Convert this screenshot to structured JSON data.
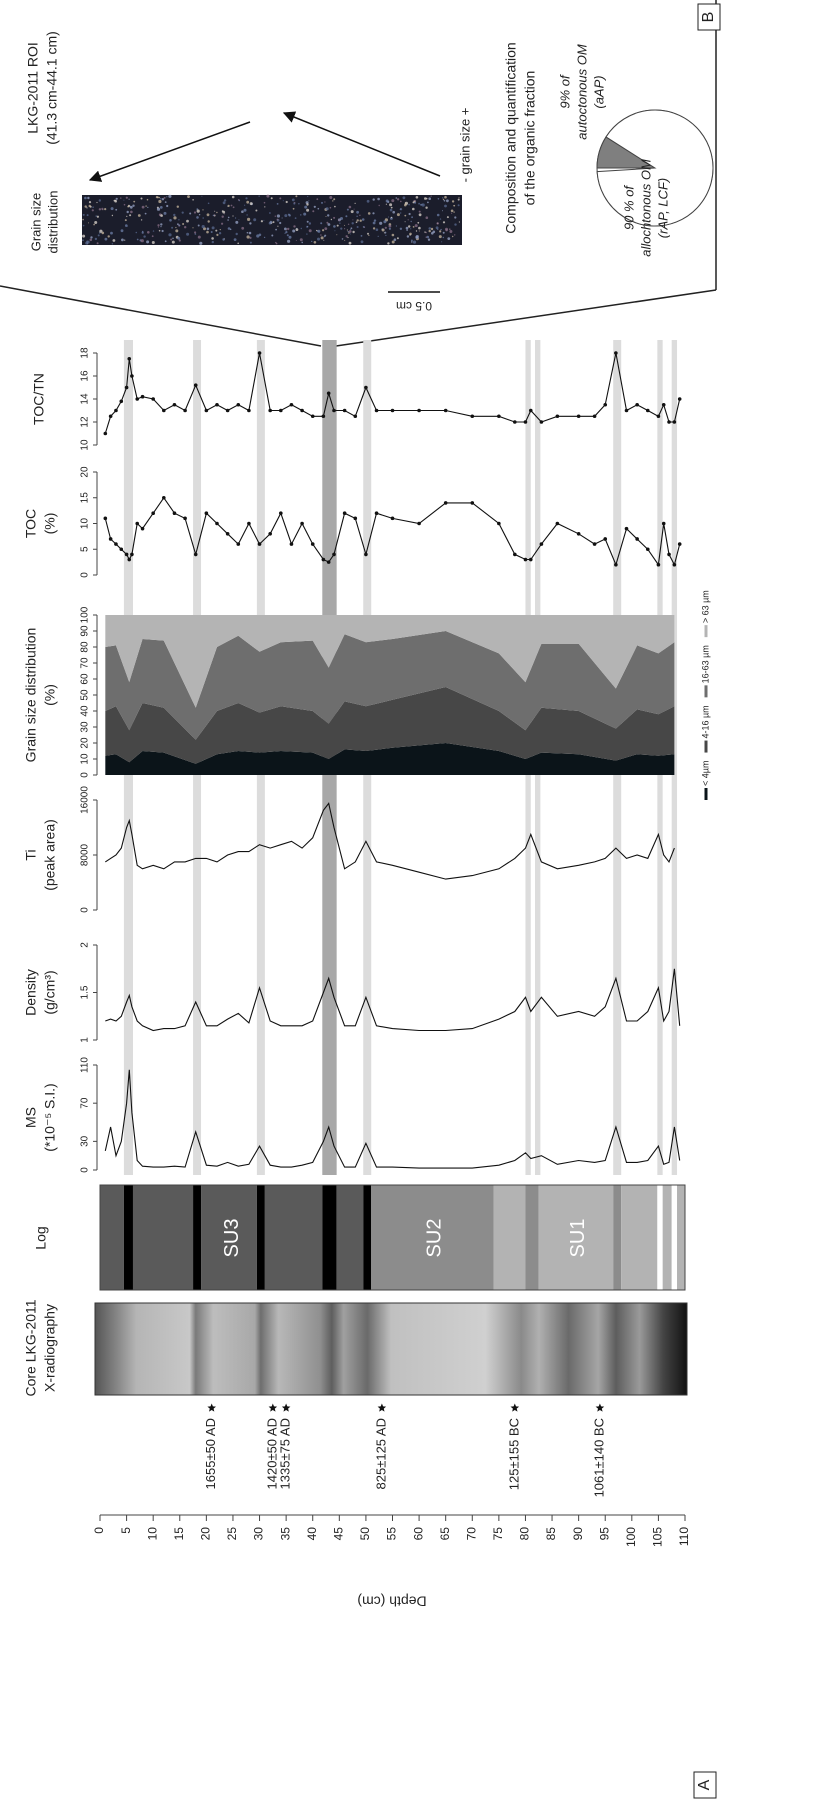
{
  "panel_a": {
    "label": "A",
    "depth_axis": {
      "title": "Depth (cm)",
      "lim": [
        0,
        110
      ],
      "ticks": [
        0,
        5,
        10,
        15,
        20,
        25,
        30,
        35,
        40,
        45,
        50,
        55,
        60,
        65,
        70,
        75,
        80,
        85,
        90,
        95,
        100,
        105,
        110
      ]
    },
    "xrad_title": [
      "Core LKG-2011",
      "X-radiography"
    ],
    "log_title": "Log",
    "dates": [
      {
        "label": "1655±50 AD",
        "depth": 21
      },
      {
        "label": "1420±50 AD",
        "depth": 32.5
      },
      {
        "label": "1335±75 AD",
        "depth": 35
      },
      {
        "label": "825±125 AD",
        "depth": 53
      },
      {
        "label": "125±155 BC",
        "depth": 78
      },
      {
        "label": "1061±140 BC",
        "depth": 94
      }
    ],
    "log_segments": [
      {
        "from": 0,
        "to": 4.5,
        "color": "#5a5a5a"
      },
      {
        "from": 4.5,
        "to": 6.2,
        "color": "#000000"
      },
      {
        "from": 6.2,
        "to": 17.5,
        "color": "#5a5a5a"
      },
      {
        "from": 17.5,
        "to": 19,
        "color": "#000000"
      },
      {
        "from": 19,
        "to": 29.5,
        "color": "#5a5a5a"
      },
      {
        "from": 29.5,
        "to": 31,
        "color": "#000000"
      },
      {
        "from": 31,
        "to": 41.8,
        "color": "#5a5a5a"
      },
      {
        "from": 41.8,
        "to": 44.5,
        "color": "#000000"
      },
      {
        "from": 44.5,
        "to": 49.5,
        "color": "#5a5a5a"
      },
      {
        "from": 49.5,
        "to": 51,
        "color": "#000000"
      },
      {
        "from": 51,
        "to": 74,
        "color": "#8c8c8c"
      },
      {
        "from": 74,
        "to": 80,
        "color": "#b3b3b3"
      },
      {
        "from": 80,
        "to": 82.5,
        "color": "#8c8c8c"
      },
      {
        "from": 82.5,
        "to": 96.5,
        "color": "#b3b3b3"
      },
      {
        "from": 96.5,
        "to": 98,
        "color": "#8c8c8c"
      },
      {
        "from": 98,
        "to": 104.8,
        "color": "#b3b3b3"
      },
      {
        "from": 104.8,
        "to": 105.8,
        "color": "#ffffff"
      },
      {
        "from": 105.8,
        "to": 107.5,
        "color": "#b3b3b3"
      },
      {
        "from": 107.5,
        "to": 108.5,
        "color": "#ffffff"
      },
      {
        "from": 108.5,
        "to": 110,
        "color": "#b3b3b3"
      }
    ],
    "log_units": [
      {
        "label": "SU3",
        "depth": 25
      },
      {
        "label": "SU2",
        "depth": 63
      },
      {
        "label": "SU1",
        "depth": 90
      }
    ],
    "bands": [
      {
        "from": 4.5,
        "to": 6.2,
        "color": "#dcdcdc"
      },
      {
        "from": 17.5,
        "to": 19,
        "color": "#dcdcdc"
      },
      {
        "from": 29.5,
        "to": 31,
        "color": "#dcdcdc"
      },
      {
        "from": 41.8,
        "to": 44.5,
        "color": "#a8a8a8"
      },
      {
        "from": 49.5,
        "to": 51,
        "color": "#dcdcdc"
      },
      {
        "from": 80,
        "to": 81,
        "color": "#dcdcdc"
      },
      {
        "from": 81.8,
        "to": 82.8,
        "color": "#dcdcdc"
      },
      {
        "from": 96.5,
        "to": 98,
        "color": "#dcdcdc"
      },
      {
        "from": 104.8,
        "to": 105.8,
        "color": "#dcdcdc"
      },
      {
        "from": 107.5,
        "to": 108.5,
        "color": "#dcdcdc"
      }
    ],
    "depth": [
      1,
      2,
      3,
      4,
      5,
      5.5,
      6,
      7,
      8,
      10,
      12,
      14,
      16,
      18,
      20,
      22,
      24,
      26,
      28,
      30,
      32,
      34,
      36,
      38,
      40,
      42,
      43,
      44,
      46,
      48,
      50,
      52,
      55,
      60,
      65,
      70,
      75,
      78,
      80,
      81,
      83,
      86,
      90,
      93,
      95,
      97,
      99,
      101,
      103,
      105,
      106,
      107,
      108,
      109
    ],
    "profiles": [
      {
        "name": [
          "TOC/TN"
        ],
        "lim": [
          10,
          18
        ],
        "ticks": [
          10,
          12,
          14,
          16,
          18
        ],
        "markers": true,
        "values": [
          11,
          12.5,
          13,
          13.8,
          15,
          17.5,
          16,
          14,
          14.2,
          14,
          13,
          13.5,
          13,
          15.2,
          13,
          13.5,
          13,
          13.5,
          13,
          18,
          13,
          13,
          13.5,
          13,
          12.5,
          12.5,
          14.5,
          13,
          13,
          12.5,
          15,
          13,
          13,
          13,
          13,
          12.5,
          12.5,
          12,
          12,
          13,
          12,
          12.5,
          12.5,
          12.5,
          13.5,
          18,
          13,
          13.5,
          13,
          12.5,
          13.5,
          12,
          12,
          14
        ]
      },
      {
        "name": [
          "TOC",
          "(%)"
        ],
        "lim": [
          0,
          20
        ],
        "ticks": [
          0,
          5,
          10,
          15,
          20
        ],
        "markers": true,
        "values": [
          11,
          7,
          6,
          5,
          4,
          3,
          4,
          10,
          9,
          12,
          15,
          12,
          11,
          4,
          12,
          10,
          8,
          6,
          10,
          6,
          8,
          12,
          6,
          10,
          6,
          3,
          2.5,
          4,
          12,
          11,
          4,
          12,
          11,
          10,
          14,
          14,
          10,
          4,
          3,
          3,
          6,
          10,
          8,
          6,
          7,
          2,
          9,
          7,
          5,
          2,
          10,
          4,
          2,
          6
        ]
      },
      {
        "name": [
          "Ti",
          "(peak area)"
        ],
        "lim": [
          0,
          16000
        ],
        "ticks": [
          0,
          8000,
          16000
        ],
        "markers": false,
        "values": [
          7000,
          7500,
          8000,
          9000,
          12000,
          13000,
          11000,
          6500,
          6000,
          6500,
          6000,
          7000,
          7000,
          7500,
          7500,
          7000,
          8000,
          8500,
          8500,
          9500,
          9000,
          9500,
          10000,
          9000,
          10500,
          14500,
          15500,
          12000,
          6000,
          7000,
          10000,
          7000,
          6500,
          5500,
          4500,
          5000,
          6000,
          7500,
          9000,
          11000,
          7000,
          6000,
          6500,
          7000,
          7500,
          9000,
          7500,
          8000,
          7500,
          11000,
          8000,
          7000,
          9000,
          null
        ]
      },
      {
        "name": [
          "Density",
          "(g/cm³)"
        ],
        "lim": [
          1,
          2
        ],
        "ticks": [
          1,
          1.5,
          2
        ],
        "markers": false,
        "values": [
          1.2,
          1.22,
          1.2,
          1.25,
          1.4,
          1.47,
          1.35,
          1.2,
          1.15,
          1.1,
          1.12,
          1.12,
          1.15,
          1.4,
          1.15,
          1.15,
          1.22,
          1.28,
          1.18,
          1.55,
          1.2,
          1.15,
          1.15,
          1.15,
          1.2,
          1.5,
          1.65,
          1.45,
          1.15,
          1.15,
          1.45,
          1.15,
          1.12,
          1.1,
          1.1,
          1.12,
          1.22,
          1.3,
          1.45,
          1.3,
          1.45,
          1.25,
          1.3,
          1.25,
          1.35,
          1.65,
          1.2,
          1.2,
          1.3,
          1.55,
          1.2,
          1.3,
          1.75,
          1.15
        ]
      },
      {
        "name": [
          "MS",
          "(*10⁻⁵ S.I.)"
        ],
        "lim": [
          0,
          110
        ],
        "ticks": [
          0,
          30,
          70,
          110
        ],
        "markers": false,
        "values": [
          20,
          45,
          15,
          30,
          70,
          105,
          60,
          10,
          4,
          3,
          3,
          4,
          3,
          40,
          5,
          4,
          8,
          4,
          6,
          25,
          5,
          3,
          3,
          5,
          8,
          30,
          45,
          25,
          3,
          3,
          28,
          3,
          3,
          2,
          2,
          2,
          5,
          10,
          18,
          12,
          15,
          6,
          10,
          8,
          10,
          45,
          8,
          8,
          10,
          25,
          6,
          8,
          45,
          10
        ]
      }
    ],
    "grain": {
      "name": [
        "Grain size distribution",
        "(%)"
      ],
      "lim": [
        0,
        100
      ],
      "ticks": [
        0,
        10,
        20,
        30,
        40,
        50,
        60,
        70,
        80,
        90,
        100
      ],
      "depth": [
        1,
        3,
        5.5,
        8,
        12,
        18,
        22,
        26,
        30,
        34,
        40,
        43,
        46,
        50,
        55,
        65,
        75,
        80,
        83,
        90,
        97,
        101,
        105,
        108
      ],
      "series": [
        {
          "name": "< 4µm",
          "color": "#0b1419",
          "values": [
            12,
            13,
            8,
            15,
            14,
            7,
            13,
            15,
            14,
            15,
            14,
            10,
            16,
            15,
            17,
            20,
            15,
            10,
            14,
            13,
            9,
            13,
            12,
            13
          ]
        },
        {
          "name": "4-16 µm",
          "color": "#474747",
          "values": [
            28,
            30,
            20,
            30,
            28,
            15,
            27,
            30,
            25,
            28,
            26,
            22,
            30,
            28,
            30,
            35,
            25,
            18,
            28,
            27,
            20,
            28,
            26,
            30
          ]
        },
        {
          "name": "16-63 µm",
          "color": "#6e6e6e",
          "values": [
            40,
            38,
            30,
            40,
            42,
            20,
            40,
            42,
            38,
            40,
            44,
            35,
            42,
            40,
            38,
            35,
            36,
            30,
            40,
            42,
            25,
            40,
            38,
            40
          ]
        },
        {
          "name": "> 63 µm",
          "color": "#b4b4b4",
          "values": [
            20,
            19,
            42,
            15,
            16,
            58,
            20,
            13,
            23,
            17,
            16,
            33,
            12,
            17,
            15,
            10,
            24,
            42,
            18,
            18,
            46,
            19,
            24,
            17
          ]
        }
      ]
    }
  },
  "panel_b": {
    "label": "B",
    "roi": [
      "LKG-2011 ROI",
      "(41.3 cm-44.1 cm)"
    ],
    "image_title": [
      "Grain size",
      "distribution"
    ],
    "grain_size_scale": "- grain size +",
    "scale_bar": "0.5 cm",
    "pie_title": [
      "Composition and quantification",
      "of the organic fraction"
    ],
    "slices": [
      {
        "value": 9,
        "color": "#7f7f7f",
        "label": [
          "9% of",
          "autoctonous OM",
          "(aAP)"
        ]
      },
      {
        "value": 90,
        "color": "#ffffff",
        "label": [
          "90 % of",
          "allochtonous OM",
          "(rAP, LCF)"
        ]
      }
    ]
  }
}
